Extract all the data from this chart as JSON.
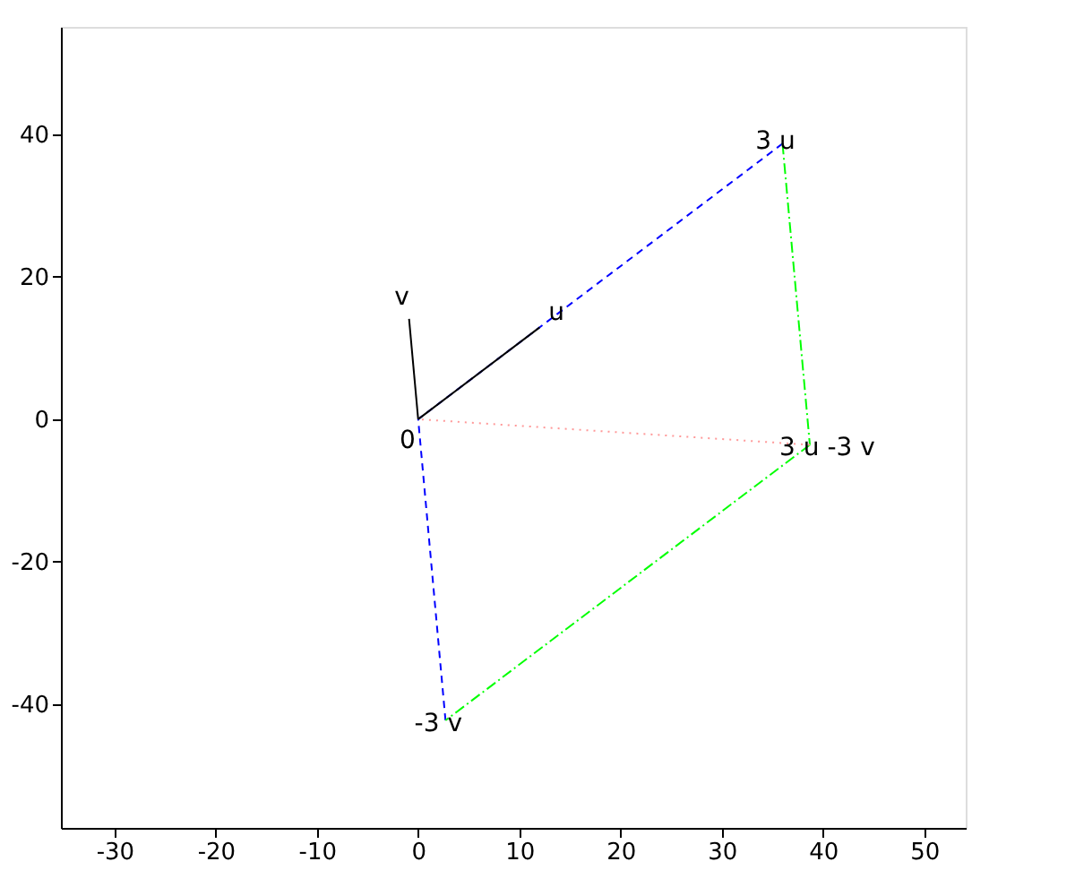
{
  "chart_data": {
    "type": "line",
    "xlim": [
      -35.3,
      54.1
    ],
    "ylim": [
      -57.4,
      55.1
    ],
    "xticks": [
      -30,
      -20,
      -10,
      0,
      10,
      20,
      30,
      40,
      50
    ],
    "yticks": [
      -40,
      -20,
      0,
      20,
      40
    ],
    "grid": false,
    "series": [
      {
        "color": "#0000ff",
        "line_style": "dashed",
        "x": [
          36,
          0
        ],
        "values": [
          38.7,
          0
        ]
      },
      {
        "color": "#0000ff",
        "line_style": "dashed",
        "x": [
          2.7,
          0
        ],
        "values": [
          -42.3,
          0
        ]
      },
      {
        "color": "#00ff00",
        "line_style": "dashdot",
        "x": [
          36,
          38.7
        ],
        "values": [
          38.7,
          -3.6
        ]
      },
      {
        "color": "#00ff00",
        "line_style": "dashdot",
        "x": [
          38.7,
          2.7
        ],
        "values": [
          -3.6,
          -42.3
        ]
      },
      {
        "color": "#ff9999",
        "line_style": "dotted",
        "x": [
          38.7,
          0
        ],
        "values": [
          -3.6,
          0
        ]
      },
      {
        "color": "#000000",
        "line_style": "solid",
        "x": [
          0,
          12
        ],
        "values": [
          0,
          12.9
        ]
      },
      {
        "color": "#000000",
        "line_style": "solid",
        "x": [
          0,
          -0.9
        ],
        "values": [
          0,
          14.1
        ]
      }
    ],
    "annotations": [
      {
        "text": "0",
        "x": 0,
        "y": 0
      },
      {
        "text": "u",
        "x": 12,
        "y": 12.9
      },
      {
        "text": "v",
        "x": -0.9,
        "y": 14.1
      },
      {
        "text": "3 u",
        "x": 36,
        "y": 38.7
      },
      {
        "text": "-3 v",
        "x": 2.7,
        "y": -42.3
      },
      {
        "text": "3 u -3 v",
        "x": 38.7,
        "y": -3.6
      }
    ]
  }
}
